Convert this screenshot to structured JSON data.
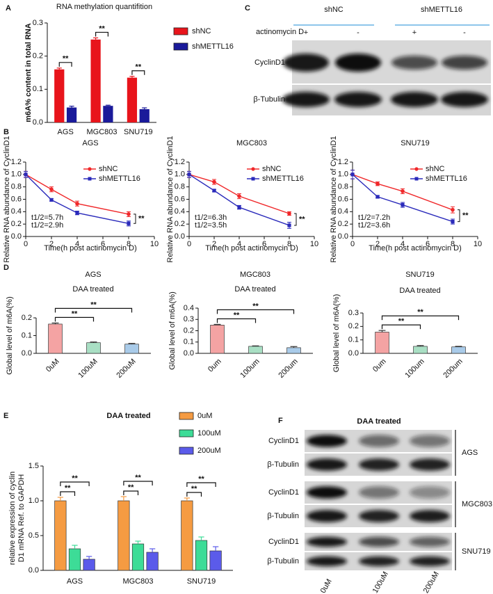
{
  "panels": [
    "A",
    "B",
    "C",
    "D",
    "E",
    "F"
  ],
  "chart_data": [
    {
      "type": "bar",
      "title": "RNA methylation quantifition",
      "y_label": "m6A% content in total RNA",
      "categories": [
        "AGS",
        "MGC803",
        "SNU719"
      ],
      "series": [
        {
          "name": "shNC",
          "color": "#e8141b",
          "values": [
            0.16,
            0.25,
            0.135
          ],
          "errors": [
            0.004,
            0.005,
            0.004
          ]
        },
        {
          "name": "shMETTL16",
          "color": "#1a1a9a",
          "values": [
            0.045,
            0.05,
            0.04
          ],
          "errors": [
            0.004,
            0.002,
            0.004
          ]
        }
      ],
      "ylim": [
        0,
        0.3
      ],
      "yticks": [
        {
          "value": 0,
          "label": "0.0"
        },
        0.1,
        0.2,
        0.3
      ],
      "annotations": [
        "**",
        "**",
        "**"
      ]
    },
    {
      "type": "line",
      "title": "AGS",
      "x_label": "Time(h post actinomycin D)",
      "y_label": "Relative  RNA abundance of CyclinD1",
      "x": [
        0,
        2,
        4,
        8
      ],
      "series": [
        {
          "name": "shNC",
          "color": "#f0282a",
          "values": [
            1.0,
            0.76,
            0.53,
            0.36
          ],
          "errors": [
            0.05,
            0.04,
            0.04,
            0.04
          ]
        },
        {
          "name": "shMETTL16",
          "color": "#2b2bbb",
          "values": [
            1.0,
            0.59,
            0.38,
            0.21
          ],
          "errors": [
            0.05,
            0.02,
            0.03,
            0.04
          ]
        }
      ],
      "xlim": [
        0,
        10
      ],
      "xticks": [
        0,
        2,
        4,
        6,
        8,
        10
      ],
      "ylim": [
        0,
        1.2
      ],
      "yticks": [
        {
          "value": 0,
          "label": "0.0"
        },
        0.2,
        0.4,
        0.6,
        0.8,
        {
          "value": 1,
          "label": "1.0"
        },
        1.2
      ],
      "annotations": [
        "t1/2=5.7h",
        "t1/2=2.9h",
        "**"
      ]
    },
    {
      "type": "line",
      "title": "MGC803",
      "x_label": "Time(h post actinomycin D)",
      "y_label": "Relative  RNA abundance of CyclinD1",
      "x": [
        0,
        2,
        4,
        8
      ],
      "series": [
        {
          "name": "shNC",
          "color": "#f0282a",
          "values": [
            1.0,
            0.88,
            0.65,
            0.37
          ],
          "errors": [
            0.05,
            0.04,
            0.04,
            0.03
          ]
        },
        {
          "name": "shMETTL16",
          "color": "#2b2bbb",
          "values": [
            1.0,
            0.74,
            0.47,
            0.18
          ],
          "errors": [
            0.05,
            0.02,
            0.03,
            0.05
          ]
        }
      ],
      "xlim": [
        0,
        10
      ],
      "xticks": [
        0,
        2,
        4,
        6,
        8,
        10
      ],
      "ylim": [
        0,
        1.2
      ],
      "yticks": [
        {
          "value": 0,
          "label": "0.0"
        },
        0.2,
        0.4,
        0.6,
        0.8,
        {
          "value": 1,
          "label": "1.0"
        },
        1.2
      ],
      "annotations": [
        "t1/2=6.3h",
        "t1/2=3.5h",
        "**"
      ]
    },
    {
      "type": "line",
      "title": "SNU719",
      "x_label": "Time(h post actinomycin D)",
      "y_label": "Relative  RNA abundance of CyclinD1",
      "x": [
        0,
        2,
        4,
        8
      ],
      "series": [
        {
          "name": "shNC",
          "color": "#f0282a",
          "values": [
            1.0,
            0.85,
            0.73,
            0.43
          ],
          "errors": [
            0.07,
            0.03,
            0.04,
            0.05
          ]
        },
        {
          "name": "shMETTL16",
          "color": "#2b2bbb",
          "values": [
            1.0,
            0.64,
            0.51,
            0.24
          ],
          "errors": [
            0.07,
            0.02,
            0.04,
            0.04
          ]
        }
      ],
      "xlim": [
        0,
        10
      ],
      "xticks": [
        0,
        2,
        4,
        6,
        8,
        10
      ],
      "ylim": [
        0,
        1.2
      ],
      "yticks": [
        {
          "value": 0,
          "label": "0.0"
        },
        0.2,
        0.4,
        0.6,
        0.8,
        {
          "value": 1,
          "label": "1.0"
        },
        1.2
      ],
      "annotations": [
        "t1/2=7.2h",
        "t1/2=3.6h",
        "**"
      ]
    },
    {
      "type": "bar",
      "title": "AGS",
      "subtitle": "DAA treated",
      "y_label": "Global level of m6A(%)",
      "categories": [
        "0uM",
        "100uM",
        "200uM"
      ],
      "colors": [
        "#f4a3a3",
        "#a9dfc4",
        "#a9cbe9"
      ],
      "values": [
        0.165,
        0.06,
        0.052
      ],
      "errors": [
        0.006,
        0.004,
        0.004
      ],
      "ylim": [
        0,
        0.2
      ],
      "yticks": [
        {
          "value": 0,
          "label": "0.0"
        },
        0.1,
        0.2
      ],
      "annotations": [
        "**",
        "**"
      ]
    },
    {
      "type": "bar",
      "title": "MGC803",
      "subtitle": "DAA treated",
      "y_label": "Global level of m6A(%)",
      "categories": [
        "0um",
        "100um",
        "200um"
      ],
      "colors": [
        "#f4a3a3",
        "#a9dfc4",
        "#a9cbe9"
      ],
      "values": [
        0.25,
        0.062,
        0.05
      ],
      "errors": [
        0.006,
        0.004,
        0.01
      ],
      "ylim": [
        0,
        0.4
      ],
      "yticks": [
        {
          "value": 0,
          "label": "0.0"
        },
        0.1,
        0.2,
        0.3,
        0.4
      ],
      "annotations": [
        "**",
        "**"
      ]
    },
    {
      "type": "bar",
      "title": "SNU719",
      "subtitle": "DAA treated",
      "y_label": "Global level of m6A(%)",
      "categories": [
        "0um",
        "100um",
        "200um"
      ],
      "colors": [
        "#f4a3a3",
        "#a9dfc4",
        "#a9cbe9"
      ],
      "values": [
        0.158,
        0.052,
        0.048
      ],
      "errors": [
        0.012,
        0.006,
        0.004
      ],
      "ylim": [
        0,
        0.3
      ],
      "yticks": [
        {
          "value": 0,
          "label": "0.0"
        },
        0.1,
        0.2,
        0.3
      ],
      "annotations": [
        "**",
        "**"
      ]
    },
    {
      "type": "bar",
      "title": "DAA treated",
      "y_label": [
        "relative expression of cyclin",
        "D1 mRNA Ref. to GAPDH"
      ],
      "categories": [
        "AGS",
        "MGC803",
        "SNU719"
      ],
      "series": [
        {
          "name": "0uM",
          "color": "#f59b42",
          "values": [
            1.0,
            1.0,
            1.0
          ],
          "errors": [
            0.05,
            0.06,
            0.04
          ]
        },
        {
          "name": "100uM",
          "color": "#3ddc97",
          "values": [
            0.31,
            0.38,
            0.43
          ],
          "errors": [
            0.05,
            0.04,
            0.05
          ]
        },
        {
          "name": "200uM",
          "color": "#5b5bea",
          "values": [
            0.16,
            0.26,
            0.28
          ],
          "errors": [
            0.04,
            0.05,
            0.06
          ]
        }
      ],
      "ylim": [
        0,
        1.5
      ],
      "yticks": [
        {
          "value": 0,
          "label": "0.0"
        },
        0.5,
        {
          "value": 1,
          "label": "1.0"
        },
        1.5
      ],
      "annotations": [
        "**",
        "**",
        "**",
        "**",
        "**",
        "**"
      ]
    }
  ],
  "blot_c": {
    "groups": [
      "shNC",
      "shMETTL16"
    ],
    "treatment_label": "actinomycin D",
    "treatment": [
      "+",
      "-",
      "+",
      "-"
    ],
    "rows": [
      "CyclinD1",
      "β-Tubulin"
    ]
  },
  "blot_f": {
    "title": "DAA treated",
    "lanes": [
      "0uM",
      "100uM",
      "200uM"
    ],
    "blocks": [
      {
        "cell_line": "AGS",
        "rows": [
          "CyclinD1",
          "β-Tubulin"
        ]
      },
      {
        "cell_line": "MGC803",
        "rows": [
          "CyclinD1",
          "β-Tubulin"
        ]
      },
      {
        "cell_line": "SNU719",
        "rows": [
          "CyclinD1",
          "β-Tubulin"
        ]
      }
    ]
  }
}
